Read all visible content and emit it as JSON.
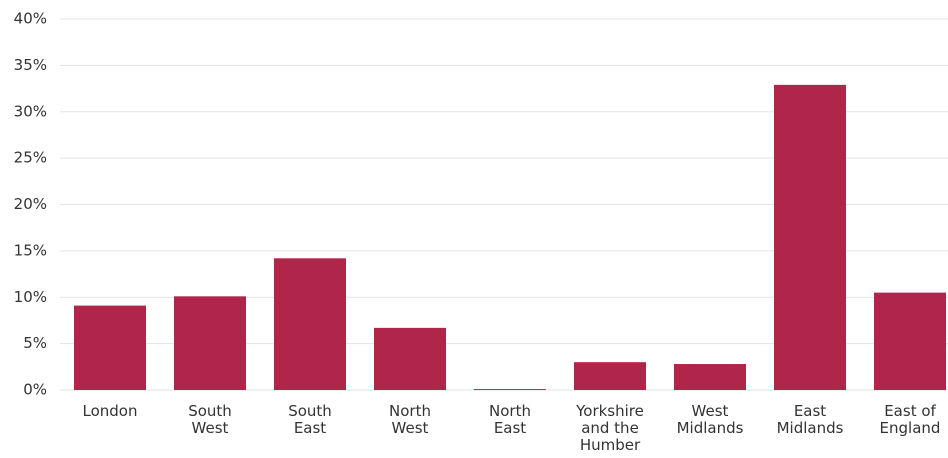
{
  "chart_data": {
    "type": "bar",
    "categories": [
      "London",
      "South West",
      "South East",
      "North West",
      "North East",
      "Yorkshire and the Humber",
      "West Midlands",
      "East Midlands",
      "East of England"
    ],
    "values": [
      9.1,
      10.1,
      14.2,
      6.7,
      0.1,
      3.0,
      2.8,
      32.9,
      10.5
    ],
    "color": "#b0264a",
    "ylim": [
      0,
      40
    ],
    "yticks": [
      {
        "value": 0,
        "label": "0%"
      },
      {
        "value": 5,
        "label": "5%"
      },
      {
        "value": 10,
        "label": "10%"
      },
      {
        "value": 15,
        "label": "15%"
      },
      {
        "value": 20,
        "label": "20%"
      },
      {
        "value": 25,
        "label": "25%"
      },
      {
        "value": 30,
        "label": "30%"
      },
      {
        "value": 35,
        "label": "35%"
      },
      {
        "value": 40,
        "label": "40%"
      }
    ],
    "grid": true
  }
}
